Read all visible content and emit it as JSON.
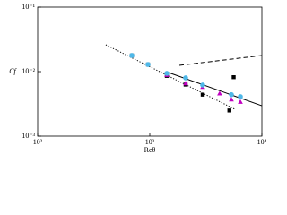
{
  "chart_data": {
    "type": "scatter",
    "x_label": "Reθ",
    "y_label": "Cf",
    "xlog": true,
    "ylog": true,
    "xlim": [
      100,
      10000
    ],
    "ylim": [
      0.001,
      0.1
    ],
    "xticks": [
      {
        "value": 100,
        "label": "10²"
      },
      {
        "value": 1000,
        "label": "10³"
      },
      {
        "value": 10000,
        "label": "10⁴"
      }
    ],
    "yticks": [
      {
        "value": 0.001,
        "label": "10⁻³"
      },
      {
        "value": 0.01,
        "label": "10⁻²"
      },
      {
        "value": 0.1,
        "label": "10⁻¹"
      }
    ],
    "lines": [
      {
        "style": "dotted",
        "color": "#000000",
        "x": [
          405,
          5754
        ],
        "values": [
          0.0261,
          0.00261
        ]
      },
      {
        "style": "solid",
        "color": "#000000",
        "x": [
          1393,
          10000
        ],
        "values": [
          0.01,
          0.00296
        ]
      },
      {
        "style": "dashed",
        "color": "#000000",
        "x": [
          1837,
          10000
        ],
        "values": [
          0.0125,
          0.0178
        ]
      }
    ],
    "series": [
      {
        "marker": "square",
        "color": "#000000",
        "x": [
          692,
          964,
          1419,
          2089,
          2965,
          5130,
          5600
        ],
        "values": [
          0.0178,
          0.0129,
          0.0086,
          0.0063,
          0.0044,
          0.0025,
          0.0082
        ]
      },
      {
        "marker": "triangle",
        "color": "#c000c0",
        "x": [
          1419,
          2089,
          2965,
          4200,
          5346,
          6427
        ],
        "values": [
          0.0089,
          0.0066,
          0.0058,
          0.0046,
          0.0037,
          0.0034
        ]
      },
      {
        "marker": "circle",
        "color": "#4fb8e8",
        "x": [
          692,
          964,
          1419,
          2089,
          2965,
          5346,
          6427
        ],
        "values": [
          0.0178,
          0.0129,
          0.0094,
          0.008,
          0.0062,
          0.0044,
          0.0041
        ]
      }
    ]
  }
}
